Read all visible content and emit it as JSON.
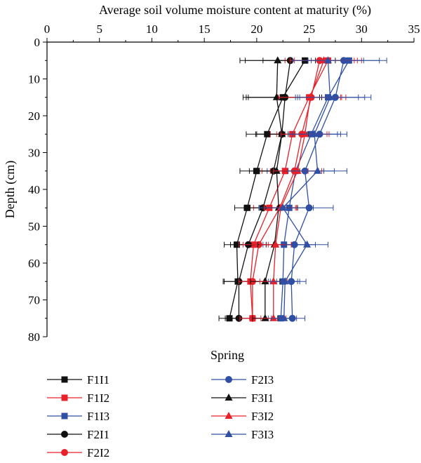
{
  "chart_data": {
    "type": "line",
    "title": "",
    "xlabel": "Average soil volume moisture content at maturity (%)",
    "ylabel": "Depth (cm)",
    "xlim": [
      0,
      35
    ],
    "ylim": [
      0,
      80
    ],
    "x_axis_position": "top",
    "y_axis_inverted": true,
    "x_ticks": [
      "0",
      "5",
      "10",
      "15",
      "20",
      "25",
      "30",
      "35"
    ],
    "y_ticks": [
      "0",
      "10",
      "20",
      "30",
      "40",
      "50",
      "60",
      "70",
      "80"
    ],
    "grid": false,
    "legend_title": "Spring",
    "legend_position": "bottom",
    "depth": [
      5,
      15,
      25,
      35,
      45,
      55,
      65,
      75
    ],
    "series": [
      {
        "name": "F1I1",
        "color": "#111111",
        "marker": "square",
        "values": [
          24.6,
          22.5,
          21.0,
          20.0,
          19.1,
          18.1,
          18.2,
          17.4
        ],
        "error": [
          4.0,
          3.5,
          2.0,
          1.6,
          1.2,
          1.2,
          1.3,
          1.0
        ]
      },
      {
        "name": "F1I2",
        "color": "#e8202a",
        "marker": "square",
        "values": [
          26.8,
          25.0,
          23.4,
          22.7,
          21.2,
          19.7,
          19.4,
          19.6
        ],
        "error": [
          3.2,
          3.0,
          2.1,
          2.2,
          1.5,
          1.4,
          1.3,
          1.2
        ]
      },
      {
        "name": "F1I3",
        "color": "#2e4fa3",
        "marker": "square",
        "values": [
          28.8,
          26.8,
          25.2,
          23.7,
          23.1,
          22.6,
          22.5,
          22.3
        ],
        "error": [
          3.6,
          2.9,
          2.5,
          2.7,
          2.3,
          2.0,
          1.4,
          1.2
        ]
      },
      {
        "name": "F2I1",
        "color": "#111111",
        "marker": "circle",
        "values": [
          23.2,
          22.7,
          22.4,
          21.6,
          20.6,
          19.2,
          18.3,
          18.3
        ],
        "error": [
          4.3,
          3.5,
          2.4,
          2.3,
          1.8,
          1.7,
          1.5,
          1.3
        ]
      },
      {
        "name": "F2I2",
        "color": "#e8202a",
        "marker": "circle",
        "values": [
          26.0,
          25.2,
          24.3,
          23.6,
          22.2,
          20.2,
          19.6,
          19.6
        ],
        "error": [
          3.3,
          3.3,
          2.4,
          2.3,
          1.5,
          1.5,
          1.3,
          1.2
        ]
      },
      {
        "name": "F2I3",
        "color": "#2e4fa3",
        "marker": "circle",
        "values": [
          28.3,
          27.5,
          26.0,
          24.6,
          25.0,
          23.6,
          23.3,
          23.4
        ],
        "error": [
          3.4,
          3.4,
          2.6,
          2.8,
          2.3,
          2.0,
          1.4,
          1.2
        ]
      },
      {
        "name": "F3I1",
        "color": "#111111",
        "marker": "triangle",
        "values": [
          22.0,
          21.9,
          22.4,
          21.9,
          22.1,
          21.7,
          20.8,
          20.8
        ],
        "error": [
          3.6,
          3.2,
          2.5,
          2.2,
          1.8,
          1.6,
          1.4,
          1.2
        ]
      },
      {
        "name": "F3I2",
        "color": "#e8202a",
        "marker": "triangle",
        "values": [
          26.4,
          25.1,
          24.6,
          23.9,
          22.3,
          21.8,
          21.6,
          21.6
        ],
        "error": [
          3.2,
          3.0,
          2.3,
          2.3,
          1.5,
          1.5,
          1.3,
          1.2
        ]
      },
      {
        "name": "F3I3",
        "color": "#2e4fa3",
        "marker": "triangle",
        "values": [
          26.8,
          27.0,
          25.5,
          25.8,
          22.5,
          24.8,
          22.7,
          22.6
        ],
        "error": [
          3.4,
          3.3,
          2.5,
          2.8,
          2.3,
          2.0,
          1.4,
          1.2
        ]
      }
    ]
  }
}
